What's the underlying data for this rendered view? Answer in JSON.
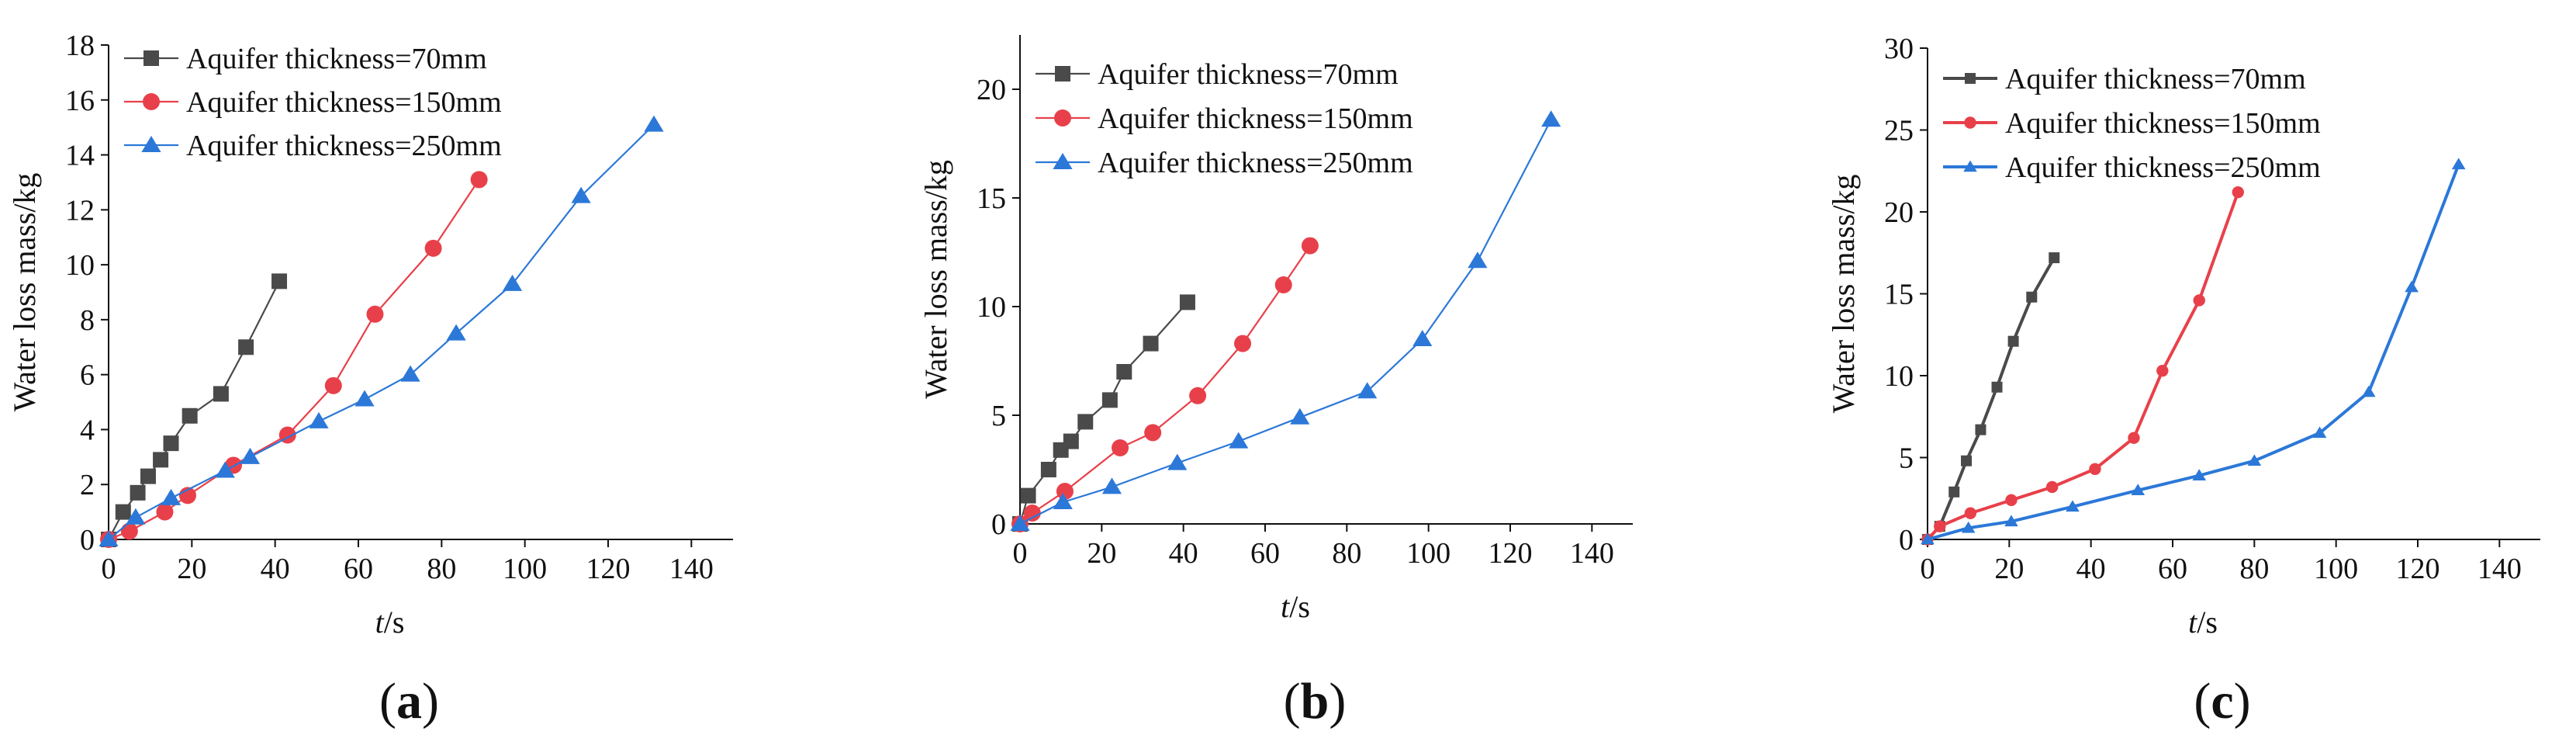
{
  "colors": {
    "series_70": "#4a4a4a",
    "series_150": "#e8404a",
    "series_250": "#2b78d8",
    "axis": "#111111"
  },
  "chart_data": [
    {
      "id": "a",
      "panel_label": "(a)",
      "type": "line",
      "xlabel": "t/s",
      "ylabel": "Water loss mass/kg",
      "xlim": [
        0,
        150
      ],
      "ylim": [
        0,
        18
      ],
      "xticks": [
        0,
        20,
        40,
        60,
        80,
        100,
        120,
        140
      ],
      "yticks": [
        0,
        2,
        4,
        6,
        8,
        10,
        12,
        14,
        16,
        18
      ],
      "series": [
        {
          "name": "Aquifer thickness=70mm",
          "marker": "square",
          "color": "#4a4a4a",
          "x": [
            0,
            3.5,
            7,
            9.5,
            12.5,
            15,
            19.5,
            27,
            33,
            41
          ],
          "y": [
            0,
            1.0,
            1.7,
            2.3,
            2.9,
            3.5,
            4.5,
            5.3,
            7.0,
            9.4
          ]
        },
        {
          "name": "Aquifer thickness=150mm",
          "marker": "circle",
          "color": "#e8404a",
          "x": [
            0,
            5,
            13.5,
            19,
            30,
            43,
            54,
            64,
            78,
            89
          ],
          "y": [
            0,
            0.3,
            1.0,
            1.6,
            2.7,
            3.8,
            5.6,
            8.2,
            10.6,
            13.1
          ]
        },
        {
          "name": "Aquifer thickness=250mm",
          "marker": "triangle",
          "color": "#2b78d8",
          "x": [
            0,
            6.5,
            15,
            28,
            34,
            50.5,
            61.5,
            72.5,
            83.5,
            97,
            113.5,
            131
          ],
          "y": [
            0,
            0.8,
            1.5,
            2.5,
            3.0,
            4.3,
            5.1,
            6.0,
            7.5,
            9.3,
            12.5,
            15.1
          ]
        }
      ]
    },
    {
      "id": "b",
      "panel_label": "(b)",
      "type": "line",
      "xlabel": "t/s",
      "ylabel": "Water loss mass/kg",
      "xlim": [
        0,
        150
      ],
      "ylim": [
        0,
        22.5
      ],
      "xticks": [
        0,
        20,
        40,
        60,
        80,
        100,
        120,
        140
      ],
      "yticks": [
        0,
        5,
        10,
        15,
        20
      ],
      "series": [
        {
          "name": "Aquifer thickness=70mm",
          "marker": "square",
          "color": "#4a4a4a",
          "x": [
            0,
            2,
            7,
            10,
            12.5,
            16,
            22,
            25.5,
            32,
            41
          ],
          "y": [
            0,
            1.3,
            2.5,
            3.4,
            3.8,
            4.7,
            5.7,
            7.0,
            8.3,
            10.2
          ]
        },
        {
          "name": "Aquifer thickness=150mm",
          "marker": "circle",
          "color": "#e8404a",
          "x": [
            0,
            3,
            11,
            24.5,
            32.5,
            43.5,
            54.5,
            64.5,
            71
          ],
          "y": [
            0,
            0.5,
            1.5,
            3.5,
            4.2,
            5.9,
            8.3,
            11.0,
            12.8
          ]
        },
        {
          "name": "Aquifer thickness=250mm",
          "marker": "triangle",
          "color": "#2b78d8",
          "x": [
            0,
            10.5,
            22.5,
            38.5,
            53.5,
            68.5,
            85,
            98.5,
            112,
            130
          ],
          "y": [
            0,
            1.0,
            1.7,
            2.8,
            3.8,
            4.9,
            6.1,
            8.5,
            12.1,
            18.6
          ]
        }
      ]
    },
    {
      "id": "c",
      "panel_label": "(c)",
      "type": "line",
      "xlabel": "t/s",
      "ylabel": "Water loss mass/kg",
      "xlim": [
        0,
        150
      ],
      "ylim": [
        0,
        30
      ],
      "xticks": [
        0,
        20,
        40,
        60,
        80,
        100,
        120,
        140
      ],
      "yticks": [
        0,
        5,
        10,
        15,
        20,
        25,
        30
      ],
      "series": [
        {
          "name": "Aquifer thickness=70mm",
          "marker": "square",
          "color": "#4a4a4a",
          "x": [
            0,
            3,
            6.5,
            9.5,
            13,
            17,
            21,
            25.5,
            31
          ],
          "y": [
            0,
            0.8,
            2.9,
            4.8,
            6.7,
            9.3,
            12.1,
            14.8,
            17.2
          ]
        },
        {
          "name": "Aquifer thickness=150mm",
          "marker": "circle",
          "color": "#e8404a",
          "x": [
            0,
            3,
            10.5,
            20.5,
            30.5,
            41,
            50.5,
            57.5,
            66.5,
            76
          ],
          "y": [
            0,
            0.8,
            1.6,
            2.4,
            3.2,
            4.3,
            6.2,
            10.3,
            14.6,
            21.2
          ]
        },
        {
          "name": "Aquifer thickness=250mm",
          "marker": "triangle",
          "color": "#2b78d8",
          "x": [
            0,
            10,
            20.5,
            35.5,
            51.5,
            66.5,
            80,
            96,
            108,
            118.5,
            130
          ],
          "y": [
            0,
            0.7,
            1.1,
            2.0,
            3.0,
            3.9,
            4.8,
            6.5,
            9.0,
            15.4,
            22.9
          ]
        }
      ]
    }
  ]
}
